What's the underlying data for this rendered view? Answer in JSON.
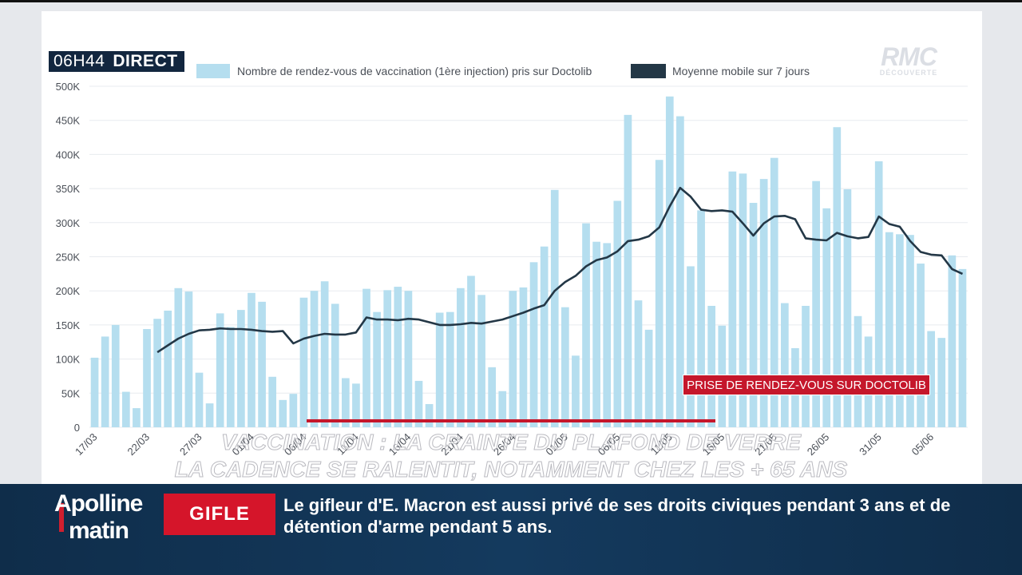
{
  "broadcast": {
    "time": "06H44",
    "live_label": "DIRECT",
    "channel_logo_main": "RMC",
    "channel_logo_sub": "DÉCOUVERTE",
    "chart_tag": "PRISE DE RENDEZ-VOUS SUR DOCTOLIB",
    "overlay_title_line1": "VACCINATION : LA CRAINTE DU PLAFOND DE VERRE",
    "overlay_title_line2": "LA CADENCE SE RALENTIT, NOTAMMENT CHEZ LES + 65 ANS",
    "show_name_line1": "Apolline",
    "show_name_line2": "matin",
    "ticker_badge": "GIFLE",
    "ticker_text": "Le gifleur d'E. Macron est aussi privé de ses droits civiques pendant 3 ans et de détention d'arme pendant 5 ans."
  },
  "colors": {
    "bar": "#b5deef",
    "line": "#233746",
    "grid": "#e8ebef",
    "accent_red": "#c5172b",
    "ticker_bg": "#123558"
  },
  "chart_data": {
    "type": "bar",
    "title": "",
    "xlabel": "",
    "ylabel": "",
    "ylim": [
      0,
      500000
    ],
    "yticks": [
      "0",
      "50K",
      "100K",
      "150K",
      "200K",
      "250K",
      "300K",
      "350K",
      "400K",
      "450K",
      "500K"
    ],
    "xtick_labels": [
      {
        "index": 0,
        "label": "17/03"
      },
      {
        "index": 5,
        "label": "22/03"
      },
      {
        "index": 10,
        "label": "27/03"
      },
      {
        "index": 15,
        "label": "01/04"
      },
      {
        "index": 20,
        "label": "06/04"
      },
      {
        "index": 25,
        "label": "11/04"
      },
      {
        "index": 30,
        "label": "16/04"
      },
      {
        "index": 35,
        "label": "21/04"
      },
      {
        "index": 40,
        "label": "26/04"
      },
      {
        "index": 45,
        "label": "01/05"
      },
      {
        "index": 50,
        "label": "06/05"
      },
      {
        "index": 55,
        "label": "11/05"
      },
      {
        "index": 60,
        "label": "16/05"
      },
      {
        "index": 65,
        "label": "21/05"
      },
      {
        "index": 70,
        "label": "26/05"
      },
      {
        "index": 75,
        "label": "31/05"
      },
      {
        "index": 80,
        "label": "05/06"
      }
    ],
    "legend_position": "top",
    "series": [
      {
        "name": "Nombre de rendez-vous de vaccination (1ère injection) pris sur Doctolib",
        "type": "bar",
        "values": [
          102000,
          133000,
          150000,
          52000,
          28000,
          144000,
          159000,
          171000,
          204000,
          199000,
          80000,
          35000,
          167000,
          147000,
          172000,
          197000,
          184000,
          74000,
          40000,
          49000,
          190000,
          200000,
          214000,
          181000,
          72000,
          64000,
          203000,
          169000,
          201000,
          206000,
          200000,
          68000,
          34000,
          168000,
          169000,
          204000,
          222000,
          194000,
          88000,
          53000,
          200000,
          205000,
          242000,
          265000,
          348000,
          176000,
          105000,
          299000,
          272000,
          270000,
          332000,
          458000,
          186000,
          143000,
          392000,
          485000,
          456000,
          236000,
          318000,
          178000,
          149000,
          375000,
          372000,
          329000,
          364000,
          395000,
          182000,
          116000,
          178000,
          361000,
          321000,
          440000,
          349000,
          163000,
          133000,
          390000,
          286000,
          283000,
          282000,
          240000,
          141000,
          131000,
          252000,
          232000
        ]
      },
      {
        "name": "Moyenne mobile sur 7 jours",
        "type": "line",
        "start_index": 6,
        "values": [
          110000,
          120000,
          130000,
          137000,
          142000,
          143000,
          145000,
          144000,
          144000,
          143000,
          141000,
          140000,
          141000,
          123000,
          130000,
          134000,
          137000,
          136000,
          136000,
          139000,
          161000,
          158000,
          158000,
          157000,
          159000,
          158000,
          154000,
          150000,
          150000,
          151000,
          153000,
          152000,
          155000,
          158000,
          163000,
          168000,
          174000,
          179000,
          200000,
          213000,
          222000,
          236000,
          245000,
          249000,
          258000,
          273000,
          275000,
          280000,
          293000,
          324000,
          351000,
          338000,
          319000,
          317000,
          318000,
          316000,
          299000,
          281000,
          299000,
          309000,
          310000,
          305000,
          277000,
          275000,
          274000,
          285000,
          280000,
          277000,
          279000,
          309000,
          298000,
          294000,
          273000,
          257000,
          253000,
          252000,
          232000,
          225000
        ]
      }
    ]
  }
}
